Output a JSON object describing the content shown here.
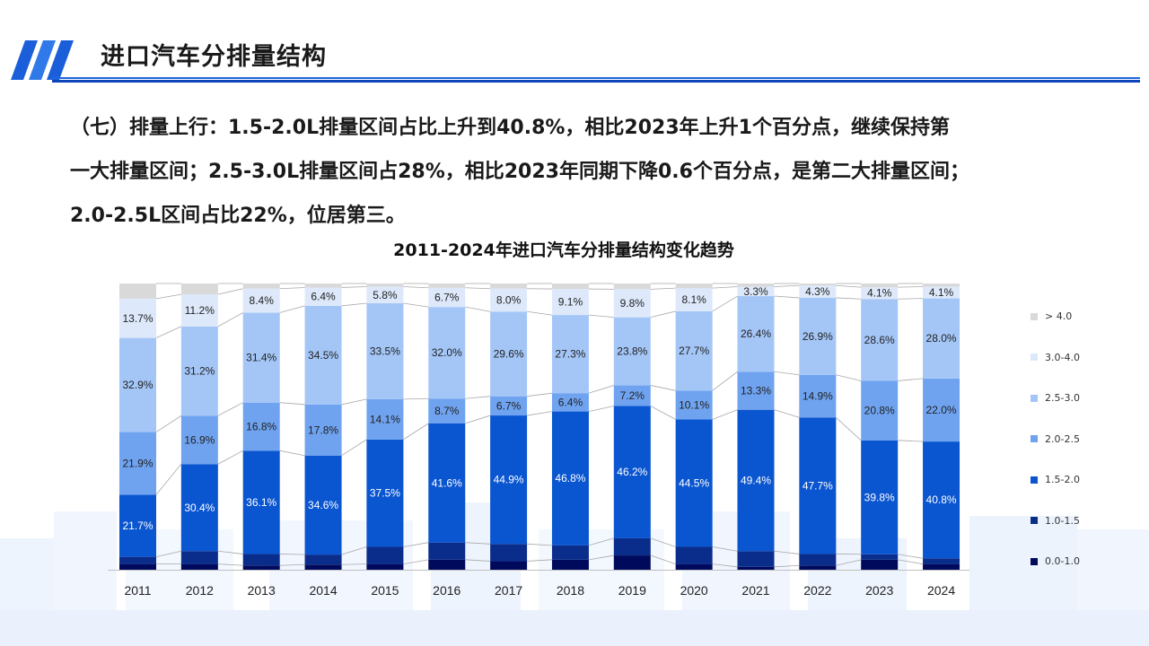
{
  "header": {
    "title": "进口汽车分排量结构"
  },
  "summary": {
    "line1": "（七）排量上行：1.5-2.0L排量区间占比上升到40.8%，相比2023年上升1个百分点，继续保持第",
    "line2": "一大排量区间；2.5-3.0L排量区间占28%，相比2023年同期下降0.6个百分点，是第二大排量区间；",
    "line3": "2.0-2.5L区间占比22%，位居第三。"
  },
  "colors": {
    "accent": "#0b43b8",
    "series": [
      "#000a5c",
      "#0a2d8c",
      "#0a55d0",
      "#6fa3f0",
      "#a4c6f7",
      "#dde9fb",
      "#d9d9d9"
    ]
  },
  "chart_data": {
    "type": "bar",
    "stacked": true,
    "title": "2011-2024年进口汽车分排量结构变化趋势",
    "categories": [
      "2011",
      "2012",
      "2013",
      "2014",
      "2015",
      "2016",
      "2017",
      "2018",
      "2019",
      "2020",
      "2021",
      "2022",
      "2023",
      "2024"
    ],
    "legend_position": "right",
    "series": [
      {
        "name": "0.0-1.0",
        "values": [
          2.0,
          2.0,
          1.5,
          1.8,
          2.0,
          3.5,
          3.0,
          3.5,
          5.0,
          2.0,
          1.0,
          1.5,
          3.5,
          2.0
        ]
      },
      {
        "name": "1.0-1.5",
        "values": [
          2.5,
          4.5,
          4.0,
          3.5,
          6.0,
          6.0,
          6.0,
          5.0,
          6.0,
          6.0,
          5.5,
          4.0,
          1.9,
          2.0
        ]
      },
      {
        "name": "1.5-2.0",
        "values": [
          21.7,
          30.4,
          36.1,
          34.6,
          37.5,
          41.6,
          44.9,
          46.8,
          46.2,
          44.5,
          49.4,
          47.7,
          39.8,
          40.8
        ]
      },
      {
        "name": "2.0-2.5",
        "values": [
          21.9,
          16.9,
          16.8,
          17.8,
          14.1,
          8.7,
          6.7,
          6.4,
          7.2,
          10.1,
          13.3,
          14.9,
          20.8,
          22.0
        ]
      },
      {
        "name": "2.5-3.0",
        "values": [
          32.9,
          31.2,
          31.4,
          34.5,
          33.5,
          32.0,
          29.6,
          27.3,
          23.8,
          27.7,
          26.4,
          26.9,
          28.6,
          28.0
        ]
      },
      {
        "name": "3.0-4.0",
        "values": [
          13.7,
          11.2,
          8.4,
          6.4,
          5.8,
          6.7,
          8.0,
          9.1,
          9.8,
          8.1,
          3.3,
          4.3,
          4.1,
          4.1
        ]
      },
      {
        "name": "> 4.0",
        "values": [
          5.3,
          3.8,
          1.8,
          1.4,
          1.1,
          1.5,
          1.8,
          1.9,
          2.0,
          1.6,
          1.1,
          0.7,
          1.3,
          1.1
        ]
      }
    ],
    "labeled_series": [
      "1.5-2.0",
      "2.0-2.5",
      "2.5-3.0",
      "3.0-4.0"
    ],
    "ylim": [
      0,
      100
    ]
  }
}
